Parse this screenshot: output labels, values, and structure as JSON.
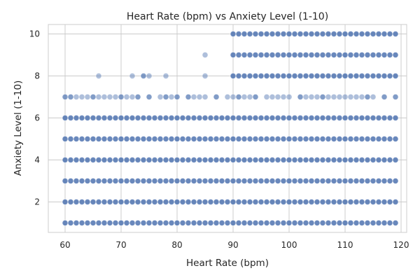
{
  "chart_data": {
    "type": "scatter",
    "title": "Heart Rate (bpm) vs Anxiety Level (1-10)",
    "xlabel": "Heart Rate (bpm)",
    "ylabel": "Anxiety Level (1-10)",
    "xlim": [
      57,
      121
    ],
    "ylim": [
      0.55,
      10.45
    ],
    "xticks": [
      60,
      70,
      80,
      90,
      100,
      110,
      120
    ],
    "yticks": [
      2,
      4,
      6,
      8,
      10
    ],
    "grid": true,
    "legend": "none",
    "series": [
      {
        "marker_color": "#4c72b0",
        "point_alpha": 0.45,
        "points_note": "",
        "rows": [
          {
            "y": 1,
            "x_from": 60,
            "x_to": 119
          },
          {
            "y": 2,
            "x_from": 60,
            "x_to": 119
          },
          {
            "y": 3,
            "x_from": 60,
            "x_to": 119
          },
          {
            "y": 4,
            "x_from": 60,
            "x_to": 119
          },
          {
            "y": 5,
            "x_from": 60,
            "x_to": 119
          },
          {
            "y": 6,
            "x_from": 60,
            "x_to": 119
          },
          {
            "y": 8,
            "x_from": 90,
            "x_to": 119
          },
          {
            "y": 9,
            "x_from": 90,
            "x_to": 119
          },
          {
            "y": 10,
            "x_from": 90,
            "x_to": 119
          }
        ],
        "points": [
          [
            60,
            7
          ],
          [
            60,
            7
          ],
          [
            61,
            7
          ],
          [
            61,
            7
          ],
          [
            62,
            7
          ],
          [
            63,
            7
          ],
          [
            64,
            7
          ],
          [
            65,
            7
          ],
          [
            65,
            7
          ],
          [
            66,
            7
          ],
          [
            67,
            7
          ],
          [
            68,
            7
          ],
          [
            69,
            7
          ],
          [
            70,
            7
          ],
          [
            70,
            7
          ],
          [
            71,
            7
          ],
          [
            72,
            7
          ],
          [
            73,
            7
          ],
          [
            73,
            7
          ],
          [
            75,
            7
          ],
          [
            75,
            7
          ],
          [
            77,
            7
          ],
          [
            78,
            7
          ],
          [
            78,
            7
          ],
          [
            79,
            7
          ],
          [
            80,
            7
          ],
          [
            80,
            7
          ],
          [
            82,
            7
          ],
          [
            82,
            7
          ],
          [
            83,
            7
          ],
          [
            84,
            7
          ],
          [
            85,
            7
          ],
          [
            87,
            7
          ],
          [
            87,
            7
          ],
          [
            89,
            7
          ],
          [
            90,
            7
          ],
          [
            91,
            7
          ],
          [
            91,
            7
          ],
          [
            92,
            7
          ],
          [
            93,
            7
          ],
          [
            94,
            7
          ],
          [
            94,
            7
          ],
          [
            96,
            7
          ],
          [
            97,
            7
          ],
          [
            98,
            7
          ],
          [
            99,
            7
          ],
          [
            100,
            7
          ],
          [
            102,
            7
          ],
          [
            102,
            7
          ],
          [
            103,
            7
          ],
          [
            104,
            7
          ],
          [
            105,
            7
          ],
          [
            106,
            7
          ],
          [
            106,
            7
          ],
          [
            107,
            7
          ],
          [
            108,
            7
          ],
          [
            109,
            7
          ],
          [
            110,
            7
          ],
          [
            111,
            7
          ],
          [
            112,
            7
          ],
          [
            113,
            7
          ],
          [
            114,
            7
          ],
          [
            114,
            7
          ],
          [
            115,
            7
          ],
          [
            117,
            7
          ],
          [
            117,
            7
          ],
          [
            119,
            7
          ],
          [
            119,
            7
          ],
          [
            66,
            8
          ],
          [
            72,
            8
          ],
          [
            74,
            8
          ],
          [
            74,
            8
          ],
          [
            75,
            8
          ],
          [
            78,
            8
          ],
          [
            85,
            8
          ],
          [
            85,
            9
          ]
        ]
      }
    ]
  }
}
